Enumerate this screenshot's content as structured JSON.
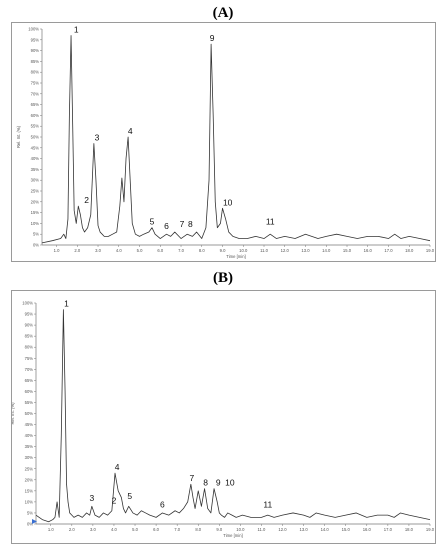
{
  "panels": [
    {
      "label": "(A)"
    },
    {
      "label": "(B)"
    }
  ],
  "chart_data": [
    {
      "type": "line",
      "panel": "(A)",
      "xlabel": "Time [min]",
      "ylabel": "Rel. Int. (%)",
      "xlim": [
        0.3,
        19.0
      ],
      "ylim": [
        0,
        100
      ],
      "xticks": [
        "1.0",
        "2.0",
        "3.0",
        "4.0",
        "5.0",
        "6.0",
        "7.0",
        "8.0",
        "9.0",
        "10.0",
        "11.0",
        "12.0",
        "13.0",
        "14.0",
        "15.0",
        "16.0",
        "17.0",
        "18.0",
        "19.0"
      ],
      "yticks": [
        "0%",
        "5%",
        "10%",
        "15%",
        "20%",
        "25%",
        "30%",
        "35%",
        "40%",
        "45%",
        "50%",
        "55%",
        "60%",
        "65%",
        "70%",
        "75%",
        "80%",
        "85%",
        "90%",
        "95%",
        "100%"
      ],
      "series": [
        {
          "x": [
            0.3,
            0.8,
            1.2,
            1.35,
            1.45,
            1.55,
            1.62,
            1.7,
            1.78,
            1.85,
            1.95,
            2.05,
            2.15,
            2.25,
            2.35,
            2.5,
            2.65,
            2.8,
            2.9,
            3.0,
            3.1,
            3.2,
            3.3,
            3.5,
            3.7,
            3.9,
            4.05,
            4.15,
            4.25,
            4.35,
            4.45,
            4.55,
            4.65,
            4.8,
            5.0,
            5.2,
            5.45,
            5.6,
            5.75,
            6.0,
            6.3,
            6.5,
            6.7,
            7.0,
            7.3,
            7.55,
            7.75,
            8.0,
            8.2,
            8.35,
            8.45,
            8.55,
            8.65,
            8.75,
            8.9,
            9.0,
            9.15,
            9.3,
            9.5,
            9.8,
            10.2,
            10.6,
            11.0,
            11.3,
            11.6,
            12.0,
            12.5,
            13.0,
            13.3,
            13.6,
            14.0,
            14.5,
            15.0,
            15.5,
            16.0,
            16.5,
            17.0,
            17.3,
            17.6,
            18.0,
            18.5,
            19.0
          ],
          "y": [
            1,
            2,
            3,
            5,
            3,
            12,
            60,
            97,
            55,
            16,
            10,
            18,
            14,
            8,
            6,
            8,
            14,
            47,
            30,
            9,
            6,
            5,
            4,
            4,
            5,
            6,
            18,
            31,
            20,
            40,
            50,
            30,
            10,
            5,
            4,
            5,
            6,
            8,
            5,
            3,
            5,
            4,
            6,
            3,
            5,
            4,
            6,
            3,
            8,
            30,
            93,
            60,
            20,
            8,
            10,
            17,
            12,
            6,
            4,
            3,
            3,
            4,
            3,
            5,
            3,
            4,
            3,
            5,
            4,
            3,
            4,
            5,
            4,
            3,
            4,
            4,
            3,
            5,
            3,
            4,
            3,
            2
          ]
        }
      ],
      "annotations": [
        "1",
        "2",
        "3",
        "4",
        "5",
        "6",
        "7",
        "8",
        "9",
        "10",
        "11"
      ]
    },
    {
      "type": "line",
      "panel": "(B)",
      "xlabel": "Time [min]",
      "ylabel": "Rel. Int. (%)",
      "xlim": [
        0.3,
        19.0
      ],
      "ylim": [
        0,
        100
      ],
      "xticks": [
        "1.0",
        "2.0",
        "3.0",
        "4.0",
        "5.0",
        "6.0",
        "7.0",
        "8.0",
        "9.0",
        "10.0",
        "11.0",
        "12.0",
        "13.0",
        "14.0",
        "15.0",
        "16.0",
        "17.0",
        "18.0",
        "19.0"
      ],
      "yticks": [
        "0%",
        "5%",
        "10%",
        "15%",
        "20%",
        "25%",
        "30%",
        "35%",
        "40%",
        "45%",
        "50%",
        "55%",
        "60%",
        "65%",
        "70%",
        "75%",
        "80%",
        "85%",
        "90%",
        "95%",
        "100%"
      ],
      "series": [
        {
          "x": [
            0.3,
            0.6,
            0.9,
            1.1,
            1.2,
            1.3,
            1.4,
            1.5,
            1.6,
            1.68,
            1.75,
            1.82,
            1.9,
            2.0,
            2.1,
            2.3,
            2.5,
            2.7,
            2.85,
            2.95,
            3.1,
            3.3,
            3.5,
            3.7,
            3.9,
            4.05,
            4.2,
            4.35,
            4.45,
            4.55,
            4.7,
            4.9,
            5.1,
            5.3,
            5.5,
            5.7,
            6.0,
            6.3,
            6.6,
            6.9,
            7.1,
            7.3,
            7.5,
            7.65,
            7.75,
            7.85,
            8.0,
            8.15,
            8.3,
            8.45,
            8.6,
            8.75,
            8.9,
            9.0,
            9.1,
            9.25,
            9.4,
            9.6,
            9.8,
            10.1,
            10.5,
            11.0,
            11.3,
            11.6,
            12.0,
            12.5,
            13.0,
            13.3,
            13.6,
            14.0,
            14.5,
            15.0,
            15.5,
            16.0,
            16.5,
            17.0,
            17.3,
            17.6,
            18.0,
            18.5,
            19.0
          ],
          "y": [
            4,
            2,
            1,
            2,
            3,
            10,
            3,
            40,
            97,
            60,
            18,
            10,
            5,
            4,
            3,
            4,
            3,
            5,
            4,
            8,
            4,
            3,
            5,
            4,
            6,
            23,
            15,
            12,
            7,
            5,
            8,
            5,
            4,
            6,
            5,
            4,
            3,
            5,
            4,
            6,
            5,
            7,
            10,
            18,
            12,
            7,
            15,
            8,
            16,
            7,
            5,
            16,
            10,
            5,
            4,
            3,
            5,
            4,
            3,
            4,
            3,
            3,
            4,
            3,
            4,
            5,
            4,
            3,
            5,
            4,
            3,
            4,
            5,
            3,
            4,
            4,
            3,
            5,
            4,
            3,
            2
          ]
        }
      ],
      "annotations": [
        "1",
        "2",
        "3",
        "4",
        "5",
        "6",
        "7",
        "8",
        "9",
        "10",
        "11"
      ]
    }
  ]
}
